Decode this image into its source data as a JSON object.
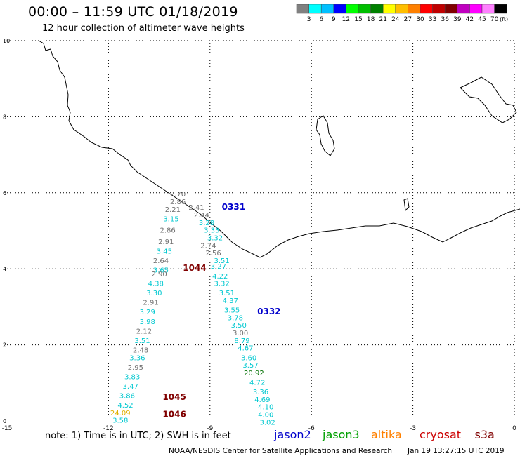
{
  "header": {
    "title": "00:00 – 11:59 UTC 01/18/2019",
    "subtitle": "12 hour collection of altimeter wave heights"
  },
  "color_scale": {
    "unit": "(ft)",
    "colors": [
      "#808080",
      "#00ffff",
      "#00bfff",
      "#0000ff",
      "#00ff00",
      "#00bf00",
      "#008000",
      "#ffff00",
      "#ffbf00",
      "#ff8000",
      "#ff0000",
      "#c00000",
      "#800000",
      "#c000c0",
      "#ff00ff",
      "#ff80ff",
      "#000000"
    ],
    "labels": [
      "3",
      "6",
      "9",
      "12",
      "15",
      "18",
      "21",
      "24",
      "27",
      "30",
      "33",
      "36",
      "39",
      "42",
      "45",
      "70"
    ]
  },
  "footer": {
    "note": "note: 1) Time is in UTC; 2) SWH is in feet",
    "credit": "NOAA/NESDIS Center for Satellite Applications and Research",
    "timestamp": "Jan 19 13:27:15 UTC 2019",
    "satellites": [
      {
        "name": "jason2",
        "color": "#0000cc"
      },
      {
        "name": "jason3",
        "color": "#00a000"
      },
      {
        "name": "altika",
        "color": "#ff8000"
      },
      {
        "name": "cryosat",
        "color": "#cc0000"
      },
      {
        "name": "s3a",
        "color": "#800000"
      }
    ]
  },
  "chart_data": {
    "type": "scatter",
    "xlim": [
      -15,
      0
    ],
    "ylim": [
      0,
      10
    ],
    "x_ticks": [
      "-15",
      "-12",
      "-9",
      "-6",
      "-3",
      "0"
    ],
    "y_ticks": [
      "0",
      "2",
      "4",
      "6",
      "8",
      "10"
    ],
    "grid": true,
    "track_labels": [
      {
        "text": "0331",
        "x": -8.65,
        "y": 5.55,
        "color": "#0000cc"
      },
      {
        "text": "1044",
        "x": -9.8,
        "y": 3.95,
        "color": "#800000"
      },
      {
        "text": "0332",
        "x": -7.6,
        "y": 2.8,
        "color": "#0000cc"
      },
      {
        "text": "1045",
        "x": -10.4,
        "y": 0.55,
        "color": "#800000"
      },
      {
        "text": "1046",
        "x": -10.4,
        "y": 0.1,
        "color": "#800000"
      }
    ],
    "points": [
      {
        "x": -9.95,
        "y": 5.9,
        "v": "2.70",
        "c": "#707070"
      },
      {
        "x": -9.95,
        "y": 5.7,
        "v": "2.86",
        "c": "#707070"
      },
      {
        "x": -10.1,
        "y": 5.5,
        "v": "2.21",
        "c": "#707070"
      },
      {
        "x": -9.4,
        "y": 5.55,
        "v": "2.41",
        "c": "#707070"
      },
      {
        "x": -9.25,
        "y": 5.35,
        "v": "2.44",
        "c": "#707070"
      },
      {
        "x": -10.15,
        "y": 5.25,
        "v": "3.15",
        "c": "#00c8d0"
      },
      {
        "x": -9.1,
        "y": 5.15,
        "v": "3.28",
        "c": "#00c8d0"
      },
      {
        "x": -10.25,
        "y": 4.95,
        "v": "2.86",
        "c": "#707070"
      },
      {
        "x": -8.95,
        "y": 4.95,
        "v": "3.33",
        "c": "#00c8d0"
      },
      {
        "x": -10.3,
        "y": 4.65,
        "v": "2.91",
        "c": "#707070"
      },
      {
        "x": -8.85,
        "y": 4.75,
        "v": "3.32",
        "c": "#00c8d0"
      },
      {
        "x": -10.35,
        "y": 4.4,
        "v": "3.45",
        "c": "#00c8d0"
      },
      {
        "x": -9.05,
        "y": 4.55,
        "v": "2.74",
        "c": "#707070"
      },
      {
        "x": -10.45,
        "y": 4.15,
        "v": "2.64",
        "c": "#707070"
      },
      {
        "x": -8.9,
        "y": 4.35,
        "v": "2.56",
        "c": "#707070"
      },
      {
        "x": -10.45,
        "y": 3.9,
        "v": "3.65",
        "c": "#00c8d0"
      },
      {
        "x": -8.65,
        "y": 4.15,
        "v": "3.51",
        "c": "#00c8d0"
      },
      {
        "x": -10.5,
        "y": 3.8,
        "v": "2.90",
        "c": "#707070"
      },
      {
        "x": -8.75,
        "y": 4.0,
        "v": "3.27",
        "c": "#00c8d0"
      },
      {
        "x": -10.6,
        "y": 3.55,
        "v": "4.38",
        "c": "#00c8d0"
      },
      {
        "x": -8.7,
        "y": 3.75,
        "v": "4.22",
        "c": "#00c8d0"
      },
      {
        "x": -10.65,
        "y": 3.3,
        "v": "3.30",
        "c": "#00c8d0"
      },
      {
        "x": -8.65,
        "y": 3.55,
        "v": "3.32",
        "c": "#00c8d0"
      },
      {
        "x": -10.75,
        "y": 3.05,
        "v": "2.91",
        "c": "#707070"
      },
      {
        "x": -8.5,
        "y": 3.3,
        "v": "3.51",
        "c": "#00c8d0"
      },
      {
        "x": -10.85,
        "y": 2.8,
        "v": "3.29",
        "c": "#00c8d0"
      },
      {
        "x": -8.4,
        "y": 3.1,
        "v": "4.37",
        "c": "#00c8d0"
      },
      {
        "x": -10.85,
        "y": 2.55,
        "v": "3.98",
        "c": "#00c8d0"
      },
      {
        "x": -8.35,
        "y": 2.85,
        "v": "3.55",
        "c": "#00c8d0"
      },
      {
        "x": -10.95,
        "y": 2.3,
        "v": "2.12",
        "c": "#707070"
      },
      {
        "x": -8.25,
        "y": 2.65,
        "v": "3.78",
        "c": "#00c8d0"
      },
      {
        "x": -11.0,
        "y": 2.05,
        "v": "3.51",
        "c": "#00c8d0"
      },
      {
        "x": -8.15,
        "y": 2.45,
        "v": "3.50",
        "c": "#00c8d0"
      },
      {
        "x": -11.05,
        "y": 1.8,
        "v": "2.48",
        "c": "#707070"
      },
      {
        "x": -8.1,
        "y": 2.25,
        "v": "3.00",
        "c": "#707070"
      },
      {
        "x": -11.15,
        "y": 1.6,
        "v": "3.36",
        "c": "#00c8d0"
      },
      {
        "x": -8.05,
        "y": 2.05,
        "v": "8.79",
        "c": "#00c8d0"
      },
      {
        "x": -11.2,
        "y": 1.35,
        "v": "2.95",
        "c": "#707070"
      },
      {
        "x": -7.95,
        "y": 1.85,
        "v": "4.67",
        "c": "#00c8d0"
      },
      {
        "x": -11.3,
        "y": 1.1,
        "v": "3.83",
        "c": "#00c8d0"
      },
      {
        "x": -7.85,
        "y": 1.6,
        "v": "3.60",
        "c": "#00c8d0"
      },
      {
        "x": -11.35,
        "y": 0.85,
        "v": "3.47",
        "c": "#00c8d0"
      },
      {
        "x": -7.8,
        "y": 1.4,
        "v": "3.57",
        "c": "#00c8d0"
      },
      {
        "x": -11.45,
        "y": 0.6,
        "v": "3.86",
        "c": "#00c8d0"
      },
      {
        "x": -7.7,
        "y": 1.2,
        "v": "20.92",
        "c": "#007000"
      },
      {
        "x": -11.5,
        "y": 0.35,
        "v": "4.52",
        "c": "#00c8d0"
      },
      {
        "x": -7.6,
        "y": 0.95,
        "v": "4.72",
        "c": "#00c8d0"
      },
      {
        "x": -11.65,
        "y": 0.15,
        "v": "24.09",
        "c": "#e0b000"
      },
      {
        "x": -7.5,
        "y": 0.7,
        "v": "3.36",
        "c": "#00c8d0"
      },
      {
        "x": -11.65,
        "y": -0.05,
        "v": "3.58",
        "c": "#00c8d0"
      },
      {
        "x": -7.45,
        "y": 0.5,
        "v": "4.69",
        "c": "#00c8d0"
      },
      {
        "x": -7.35,
        "y": 0.3,
        "v": "4.10",
        "c": "#00c8d0"
      },
      {
        "x": -7.35,
        "y": 0.1,
        "v": "4.00",
        "c": "#00c8d0"
      },
      {
        "x": -7.3,
        "y": -0.1,
        "v": "3.02",
        "c": "#00c8d0"
      }
    ]
  }
}
